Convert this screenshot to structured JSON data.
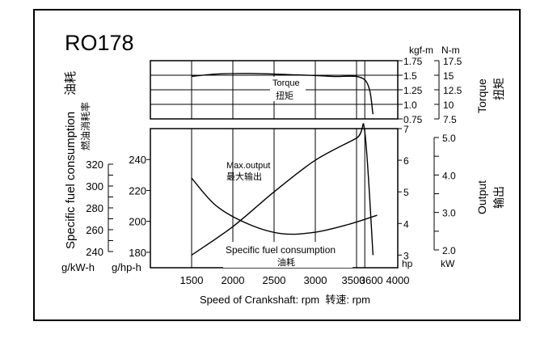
{
  "title": "RO178",
  "x_axis": {
    "label": "Speed of Crankshaft: rpm  转速: rpm",
    "ticks": [
      1500,
      2000,
      2500,
      3000,
      3500,
      3600,
      4000
    ],
    "tick_labels": [
      "1500",
      "2000",
      "2500",
      "3000",
      "3500",
      "3600",
      "4000"
    ],
    "range": [
      1000,
      4000
    ]
  },
  "torque_panel": {
    "label_en": "Torque",
    "label_cn": "扭矩",
    "curve_label_en": "Torque",
    "curve_label_cn": "扭矩",
    "unit_kgfm": "kgf-m",
    "unit_nm": "N-m",
    "kgfm_ticks": [
      "1.75",
      "1.5",
      "1.25",
      "1.0",
      "0.75"
    ],
    "nm_ticks": [
      "17.5",
      "15",
      "12.5",
      "10",
      "7.5"
    ]
  },
  "main_panel": {
    "label_en": "Specific fuel consumption",
    "label_cn_top": "油耗",
    "label_cn_sub": "燃油消耗率",
    "unit_gkwh": "g/kW-h",
    "unit_ghph": "g/hp-h",
    "unit_hp": "hp",
    "unit_kw": "kW",
    "output_label_en": "Output",
    "output_label_cn": "输出",
    "max_output_label_en": "Max.output",
    "max_output_label_cn": "最大输出",
    "sfc_label_en": "Specific fuel consumption",
    "sfc_label_cn": "油耗",
    "gkwh_ticks": [
      "320",
      "300",
      "280",
      "260",
      "240"
    ],
    "ghph_ticks": [
      "240",
      "220",
      "200",
      "180"
    ],
    "hp_ticks": [
      "7",
      "6",
      "5",
      "4",
      "3"
    ],
    "kw_ticks": [
      "5.0",
      "4.0",
      "3.0",
      "2.0"
    ]
  },
  "chart_data": {
    "type": "line",
    "x": [
      1500,
      2000,
      2500,
      3000,
      3500,
      3600,
      3700
    ],
    "series": [
      {
        "name": "Torque",
        "axis": "kgf-m",
        "x": [
          1500,
          1800,
          2200,
          2700,
          3200,
          3600,
          3700
        ],
        "values": [
          1.48,
          1.52,
          1.53,
          1.51,
          1.48,
          1.42,
          0.83
        ]
      },
      {
        "name": "Max.output",
        "axis": "hp",
        "x": [
          1500,
          2000,
          2500,
          3000,
          3500,
          3600,
          3700
        ],
        "values": [
          3.0,
          3.9,
          5.0,
          6.0,
          6.7,
          6.9,
          3.0
        ]
      },
      {
        "name": "Specific fuel consumption",
        "axis": "g/hp-h",
        "x": [
          1500,
          1800,
          2200,
          2600,
          3000,
          3400,
          3750
        ],
        "values": [
          228,
          210,
          198,
          192,
          193,
          198,
          204
        ]
      }
    ],
    "xlim": [
      1000,
      4000
    ],
    "ylim_kgfm": [
      0.75,
      1.75
    ],
    "ylim_hp": [
      2.6,
      7.0
    ],
    "ylim_ghph": [
      170,
      260
    ],
    "grid": true
  }
}
